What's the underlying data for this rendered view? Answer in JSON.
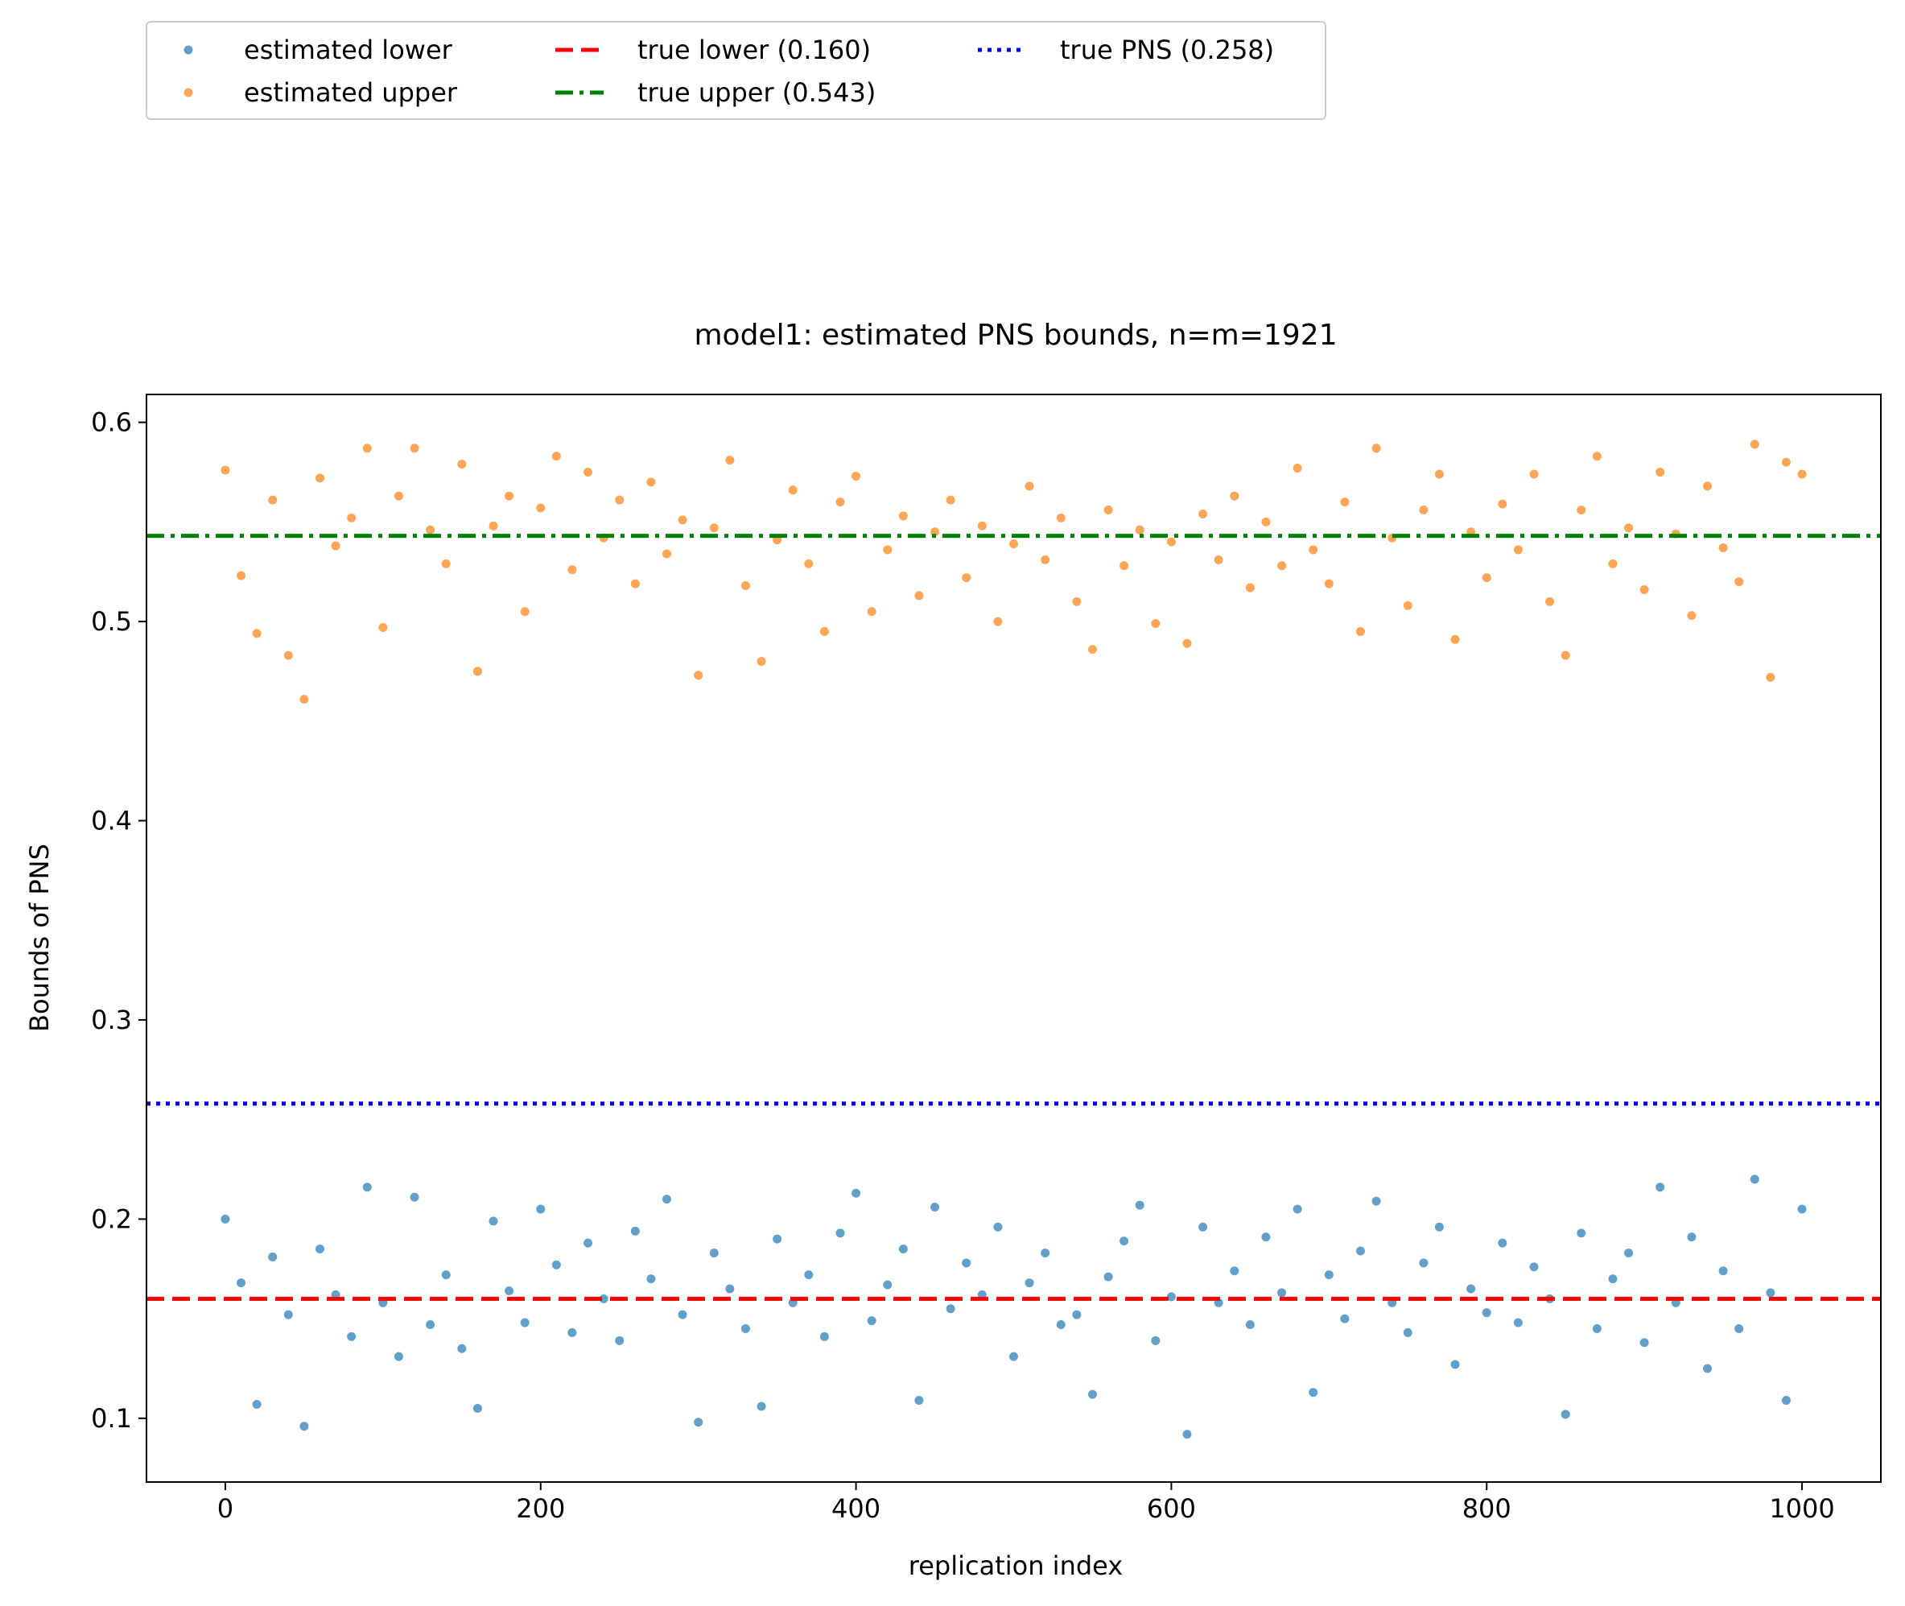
{
  "chart_data": {
    "type": "scatter",
    "title": "model1: estimated PNS bounds, n=m=1921",
    "xlabel": "replication index",
    "ylabel": "Bounds of PNS",
    "xlim": [
      -50,
      1050
    ],
    "ylim": [
      0.068,
      0.614
    ],
    "xticks": [
      0,
      200,
      400,
      600,
      800,
      1000
    ],
    "xtick_labels": [
      "0",
      "200",
      "400",
      "600",
      "800",
      "1000"
    ],
    "yticks": [
      0.1,
      0.2,
      0.3,
      0.4,
      0.5,
      0.6
    ],
    "ytick_labels": [
      "0.1",
      "0.2",
      "0.3",
      "0.4",
      "0.5",
      "0.6"
    ],
    "grid": false,
    "legend_position": "top-left, above plot",
    "series": [
      {
        "name": "estimated lower",
        "kind": "scatter",
        "color": "#1f77b4",
        "x": [
          0,
          10,
          20,
          30,
          40,
          50,
          60,
          70,
          80,
          90,
          100,
          110,
          120,
          130,
          140,
          150,
          160,
          170,
          180,
          190,
          200,
          210,
          220,
          230,
          240,
          250,
          260,
          270,
          280,
          290,
          300,
          310,
          320,
          330,
          340,
          350,
          360,
          370,
          380,
          390,
          400,
          410,
          420,
          430,
          440,
          450,
          460,
          470,
          480,
          490,
          500,
          510,
          520,
          530,
          540,
          550,
          560,
          570,
          580,
          590,
          600,
          610,
          620,
          630,
          640,
          650,
          660,
          670,
          680,
          690,
          700,
          710,
          720,
          730,
          740,
          750,
          760,
          770,
          780,
          790,
          800,
          810,
          820,
          830,
          840,
          850,
          860,
          870,
          880,
          890,
          900,
          910,
          920,
          930,
          940,
          950,
          960,
          970,
          980,
          990,
          1000
        ],
        "y": [
          0.2,
          0.168,
          0.107,
          0.181,
          0.152,
          0.096,
          0.185,
          0.162,
          0.141,
          0.216,
          0.158,
          0.131,
          0.211,
          0.147,
          0.172,
          0.135,
          0.105,
          0.199,
          0.164,
          0.148,
          0.205,
          0.177,
          0.143,
          0.188,
          0.16,
          0.139,
          0.194,
          0.17,
          0.21,
          0.152,
          0.098,
          0.183,
          0.165,
          0.145,
          0.106,
          0.19,
          0.158,
          0.172,
          0.141,
          0.193,
          0.213,
          0.149,
          0.167,
          0.185,
          0.109,
          0.206,
          0.155,
          0.178,
          0.162,
          0.196,
          0.131,
          0.168,
          0.183,
          0.147,
          0.152,
          0.112,
          0.171,
          0.189,
          0.207,
          0.139,
          0.161,
          0.092,
          0.196,
          0.158,
          0.174,
          0.147,
          0.191,
          0.163,
          0.205,
          0.113,
          0.172,
          0.15,
          0.184,
          0.209,
          0.158,
          0.143,
          0.178,
          0.196,
          0.127,
          0.165,
          0.153,
          0.188,
          0.148,
          0.176,
          0.16,
          0.102,
          0.193,
          0.145,
          0.17,
          0.183,
          0.138,
          0.216,
          0.158,
          0.191,
          0.125,
          0.174,
          0.145,
          0.22,
          0.163,
          0.109,
          0.205
        ]
      },
      {
        "name": "estimated upper",
        "kind": "scatter",
        "color": "#ff7f0e",
        "x": [
          0,
          10,
          20,
          30,
          40,
          50,
          60,
          70,
          80,
          90,
          100,
          110,
          120,
          130,
          140,
          150,
          160,
          170,
          180,
          190,
          200,
          210,
          220,
          230,
          240,
          250,
          260,
          270,
          280,
          290,
          300,
          310,
          320,
          330,
          340,
          350,
          360,
          370,
          380,
          390,
          400,
          410,
          420,
          430,
          440,
          450,
          460,
          470,
          480,
          490,
          500,
          510,
          520,
          530,
          540,
          550,
          560,
          570,
          580,
          590,
          600,
          610,
          620,
          630,
          640,
          650,
          660,
          670,
          680,
          690,
          700,
          710,
          720,
          730,
          740,
          750,
          760,
          770,
          780,
          790,
          800,
          810,
          820,
          830,
          840,
          850,
          860,
          870,
          880,
          890,
          900,
          910,
          920,
          930,
          940,
          950,
          960,
          970,
          980,
          990,
          1000
        ],
        "y": [
          0.576,
          0.523,
          0.494,
          0.561,
          0.483,
          0.461,
          0.572,
          0.538,
          0.552,
          0.587,
          0.497,
          0.563,
          0.587,
          0.546,
          0.529,
          0.579,
          0.475,
          0.548,
          0.563,
          0.505,
          0.557,
          0.583,
          0.526,
          0.575,
          0.542,
          0.561,
          0.519,
          0.57,
          0.534,
          0.551,
          0.473,
          0.547,
          0.581,
          0.518,
          0.48,
          0.541,
          0.566,
          0.529,
          0.495,
          0.56,
          0.573,
          0.505,
          0.536,
          0.553,
          0.513,
          0.545,
          0.561,
          0.522,
          0.548,
          0.5,
          0.539,
          0.568,
          0.531,
          0.552,
          0.51,
          0.486,
          0.556,
          0.528,
          0.546,
          0.499,
          0.54,
          0.489,
          0.554,
          0.531,
          0.563,
          0.517,
          0.55,
          0.528,
          0.577,
          0.536,
          0.519,
          0.56,
          0.495,
          0.587,
          0.542,
          0.508,
          0.556,
          0.574,
          0.491,
          0.545,
          0.522,
          0.559,
          0.536,
          0.574,
          0.51,
          0.483,
          0.556,
          0.583,
          0.529,
          0.547,
          0.516,
          0.575,
          0.544,
          0.503,
          0.568,
          0.537,
          0.52,
          0.589,
          0.472,
          0.58,
          0.574
        ]
      },
      {
        "name": "true lower (0.160)",
        "kind": "hline",
        "value": 0.16,
        "color": "#ff0000",
        "dash": "dashed"
      },
      {
        "name": "true upper (0.543)",
        "kind": "hline",
        "value": 0.543,
        "color": "#008000",
        "dash": "dashdot"
      },
      {
        "name": "true PNS (0.258)",
        "kind": "hline",
        "value": 0.258,
        "color": "#0000ff",
        "dash": "dotted"
      }
    ]
  }
}
